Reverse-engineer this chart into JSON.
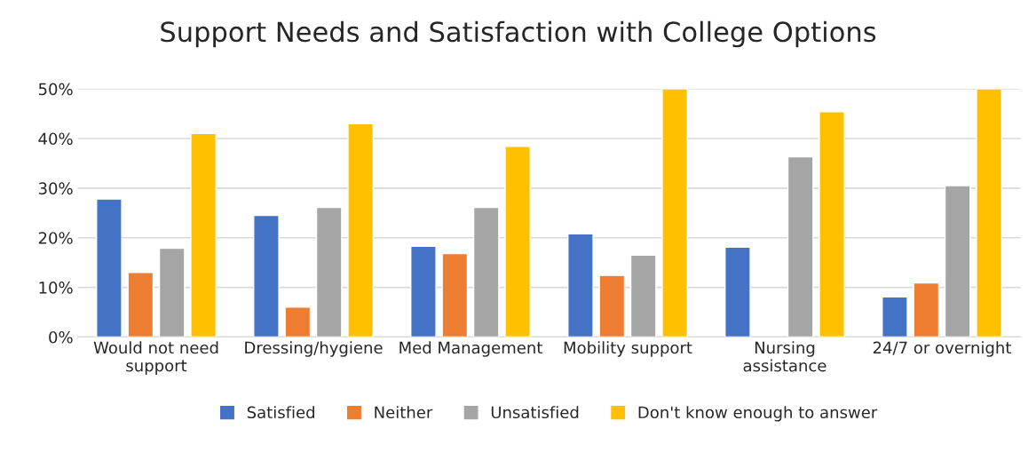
{
  "chart_data": {
    "type": "bar",
    "title": "Support Needs and Satisfaction with College Options",
    "categories": [
      "Would not need support",
      "Dressing/hygiene",
      "Med Management",
      "Mobility support",
      "Nursing assistance",
      "24/7 or overnight"
    ],
    "series": [
      {
        "name": "Satisfied",
        "color": "#4472c4",
        "values": [
          27.8,
          24.5,
          18.3,
          20.8,
          18.1,
          8.1
        ]
      },
      {
        "name": "Neither",
        "color": "#ed7d31",
        "values": [
          13.0,
          6.0,
          16.8,
          12.4,
          null,
          10.9
        ]
      },
      {
        "name": "Unsatisfied",
        "color": "#a5a5a5",
        "values": [
          17.9,
          26.1,
          26.1,
          16.5,
          36.3,
          30.5
        ]
      },
      {
        "name": "Don't know enough to answer",
        "color": "#ffc000",
        "values": [
          41.0,
          43.0,
          38.4,
          50,
          45.4,
          50
        ]
      }
    ],
    "ylim": [
      0,
      50
    ],
    "yticks": [
      {
        "value": 0,
        "label": "0%"
      },
      {
        "value": 10,
        "label": "10%"
      },
      {
        "value": 20,
        "label": "20%"
      },
      {
        "value": 30,
        "label": "30%"
      },
      {
        "value": 40,
        "label": "40%"
      },
      {
        "value": 50,
        "label": "50%"
      }
    ],
    "grid": "y",
    "legend": "bottom"
  }
}
